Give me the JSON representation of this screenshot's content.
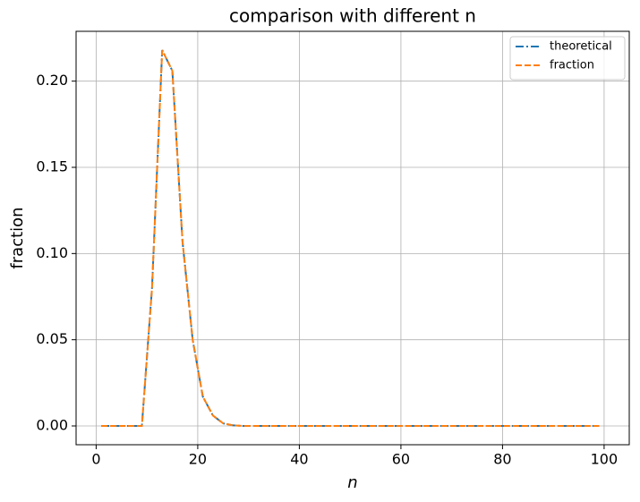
{
  "chart_data": {
    "type": "line",
    "title": "comparison with different n",
    "xlabel": "n",
    "ylabel": "fraction",
    "x": [
      1,
      3,
      5,
      7,
      9,
      11,
      13,
      15,
      17,
      19,
      21,
      23,
      25,
      27,
      29,
      31,
      33,
      35,
      37,
      39,
      41,
      43,
      45,
      47,
      49,
      51,
      53,
      55,
      57,
      59,
      61,
      63,
      65,
      67,
      69,
      71,
      73,
      75,
      77,
      79,
      81,
      83,
      85,
      87,
      89,
      91,
      93,
      95,
      97,
      99
    ],
    "series": [
      {
        "name": "theoretical",
        "color": "#1f77b4",
        "dash": "dashdot",
        "values": [
          0,
          0,
          0,
          0,
          0,
          0.08,
          0.218,
          0.206,
          0.107,
          0.05,
          0.017,
          0.006,
          0.0015,
          0.0003,
          0,
          0,
          0,
          0,
          0,
          0,
          0,
          0,
          0,
          0,
          0,
          0,
          0,
          0,
          0,
          0,
          0,
          0,
          0,
          0,
          0,
          0,
          0,
          0,
          0,
          0,
          0,
          0,
          0,
          0,
          0,
          0,
          0,
          0,
          0,
          0
        ]
      },
      {
        "name": "fraction",
        "color": "#ff7f0e",
        "dash": "dashed",
        "values": [
          0,
          0,
          0,
          0,
          0,
          0.08,
          0.218,
          0.206,
          0.107,
          0.05,
          0.017,
          0.006,
          0.0015,
          0.0003,
          0,
          0,
          0,
          0,
          0,
          0,
          0,
          0,
          0,
          0,
          0,
          0,
          0,
          0,
          0,
          0,
          0,
          0,
          0,
          0,
          0,
          0,
          0,
          0,
          0,
          0,
          0,
          0,
          0,
          0,
          0,
          0,
          0,
          0,
          0,
          0
        ]
      }
    ],
    "xlim": [
      -3.95,
      104.95
    ],
    "xticks": [
      0,
      20,
      40,
      60,
      80,
      100
    ],
    "ylim": [
      -0.0109,
      0.2289
    ],
    "yticks": [
      {
        "value": 0,
        "label": "0.00"
      },
      0.05,
      {
        "value": 0.1,
        "label": "0.10"
      },
      0.15,
      {
        "value": 0.2,
        "label": "0.20"
      }
    ],
    "grid": true,
    "legend": "upper right"
  }
}
